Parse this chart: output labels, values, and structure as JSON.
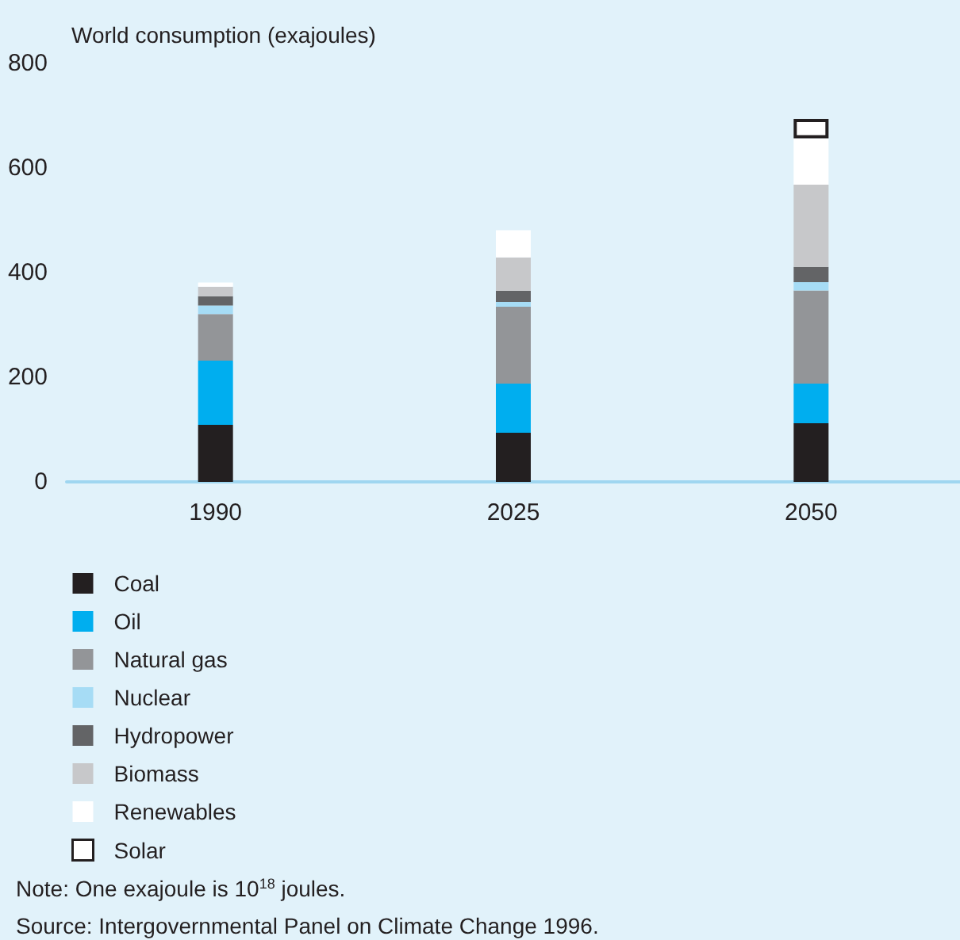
{
  "chart_data": {
    "type": "bar",
    "stacked": true,
    "ylabel": "World consumption (exajoules)",
    "categories": [
      "1990",
      "2025",
      "2050"
    ],
    "series": [
      {
        "name": "Coal",
        "color": "#231f20",
        "values": [
          109,
          94,
          112
        ]
      },
      {
        "name": "Oil",
        "color": "#00aeef",
        "values": [
          123,
          94,
          76
        ]
      },
      {
        "name": "Natural gas",
        "color": "#939598",
        "values": [
          89,
          147,
          178
        ]
      },
      {
        "name": "Nuclear",
        "color": "#a6dcf5",
        "values": [
          16,
          9,
          16
        ]
      },
      {
        "name": "Hydropower",
        "color": "#636466",
        "values": [
          18,
          21,
          29
        ]
      },
      {
        "name": "Biomass",
        "color": "#c7c8ca",
        "values": [
          18,
          64,
          157
        ]
      },
      {
        "name": "Renewables",
        "color": "#ffffff",
        "values": [
          8,
          52,
          89
        ]
      },
      {
        "name": "Solar",
        "color": "#ffffff",
        "values": [
          null,
          null,
          37
        ]
      }
    ],
    "ylim": [
      0,
      800
    ],
    "yticks": [
      0,
      200,
      400,
      600,
      800
    ],
    "grid": false,
    "legend": "bottom left",
    "annotations": [
      "Note: One exajoule is 10$^{18}$ joules.",
      "Source: Intergovernmental Panel on Climate Change 1996."
    ]
  }
}
